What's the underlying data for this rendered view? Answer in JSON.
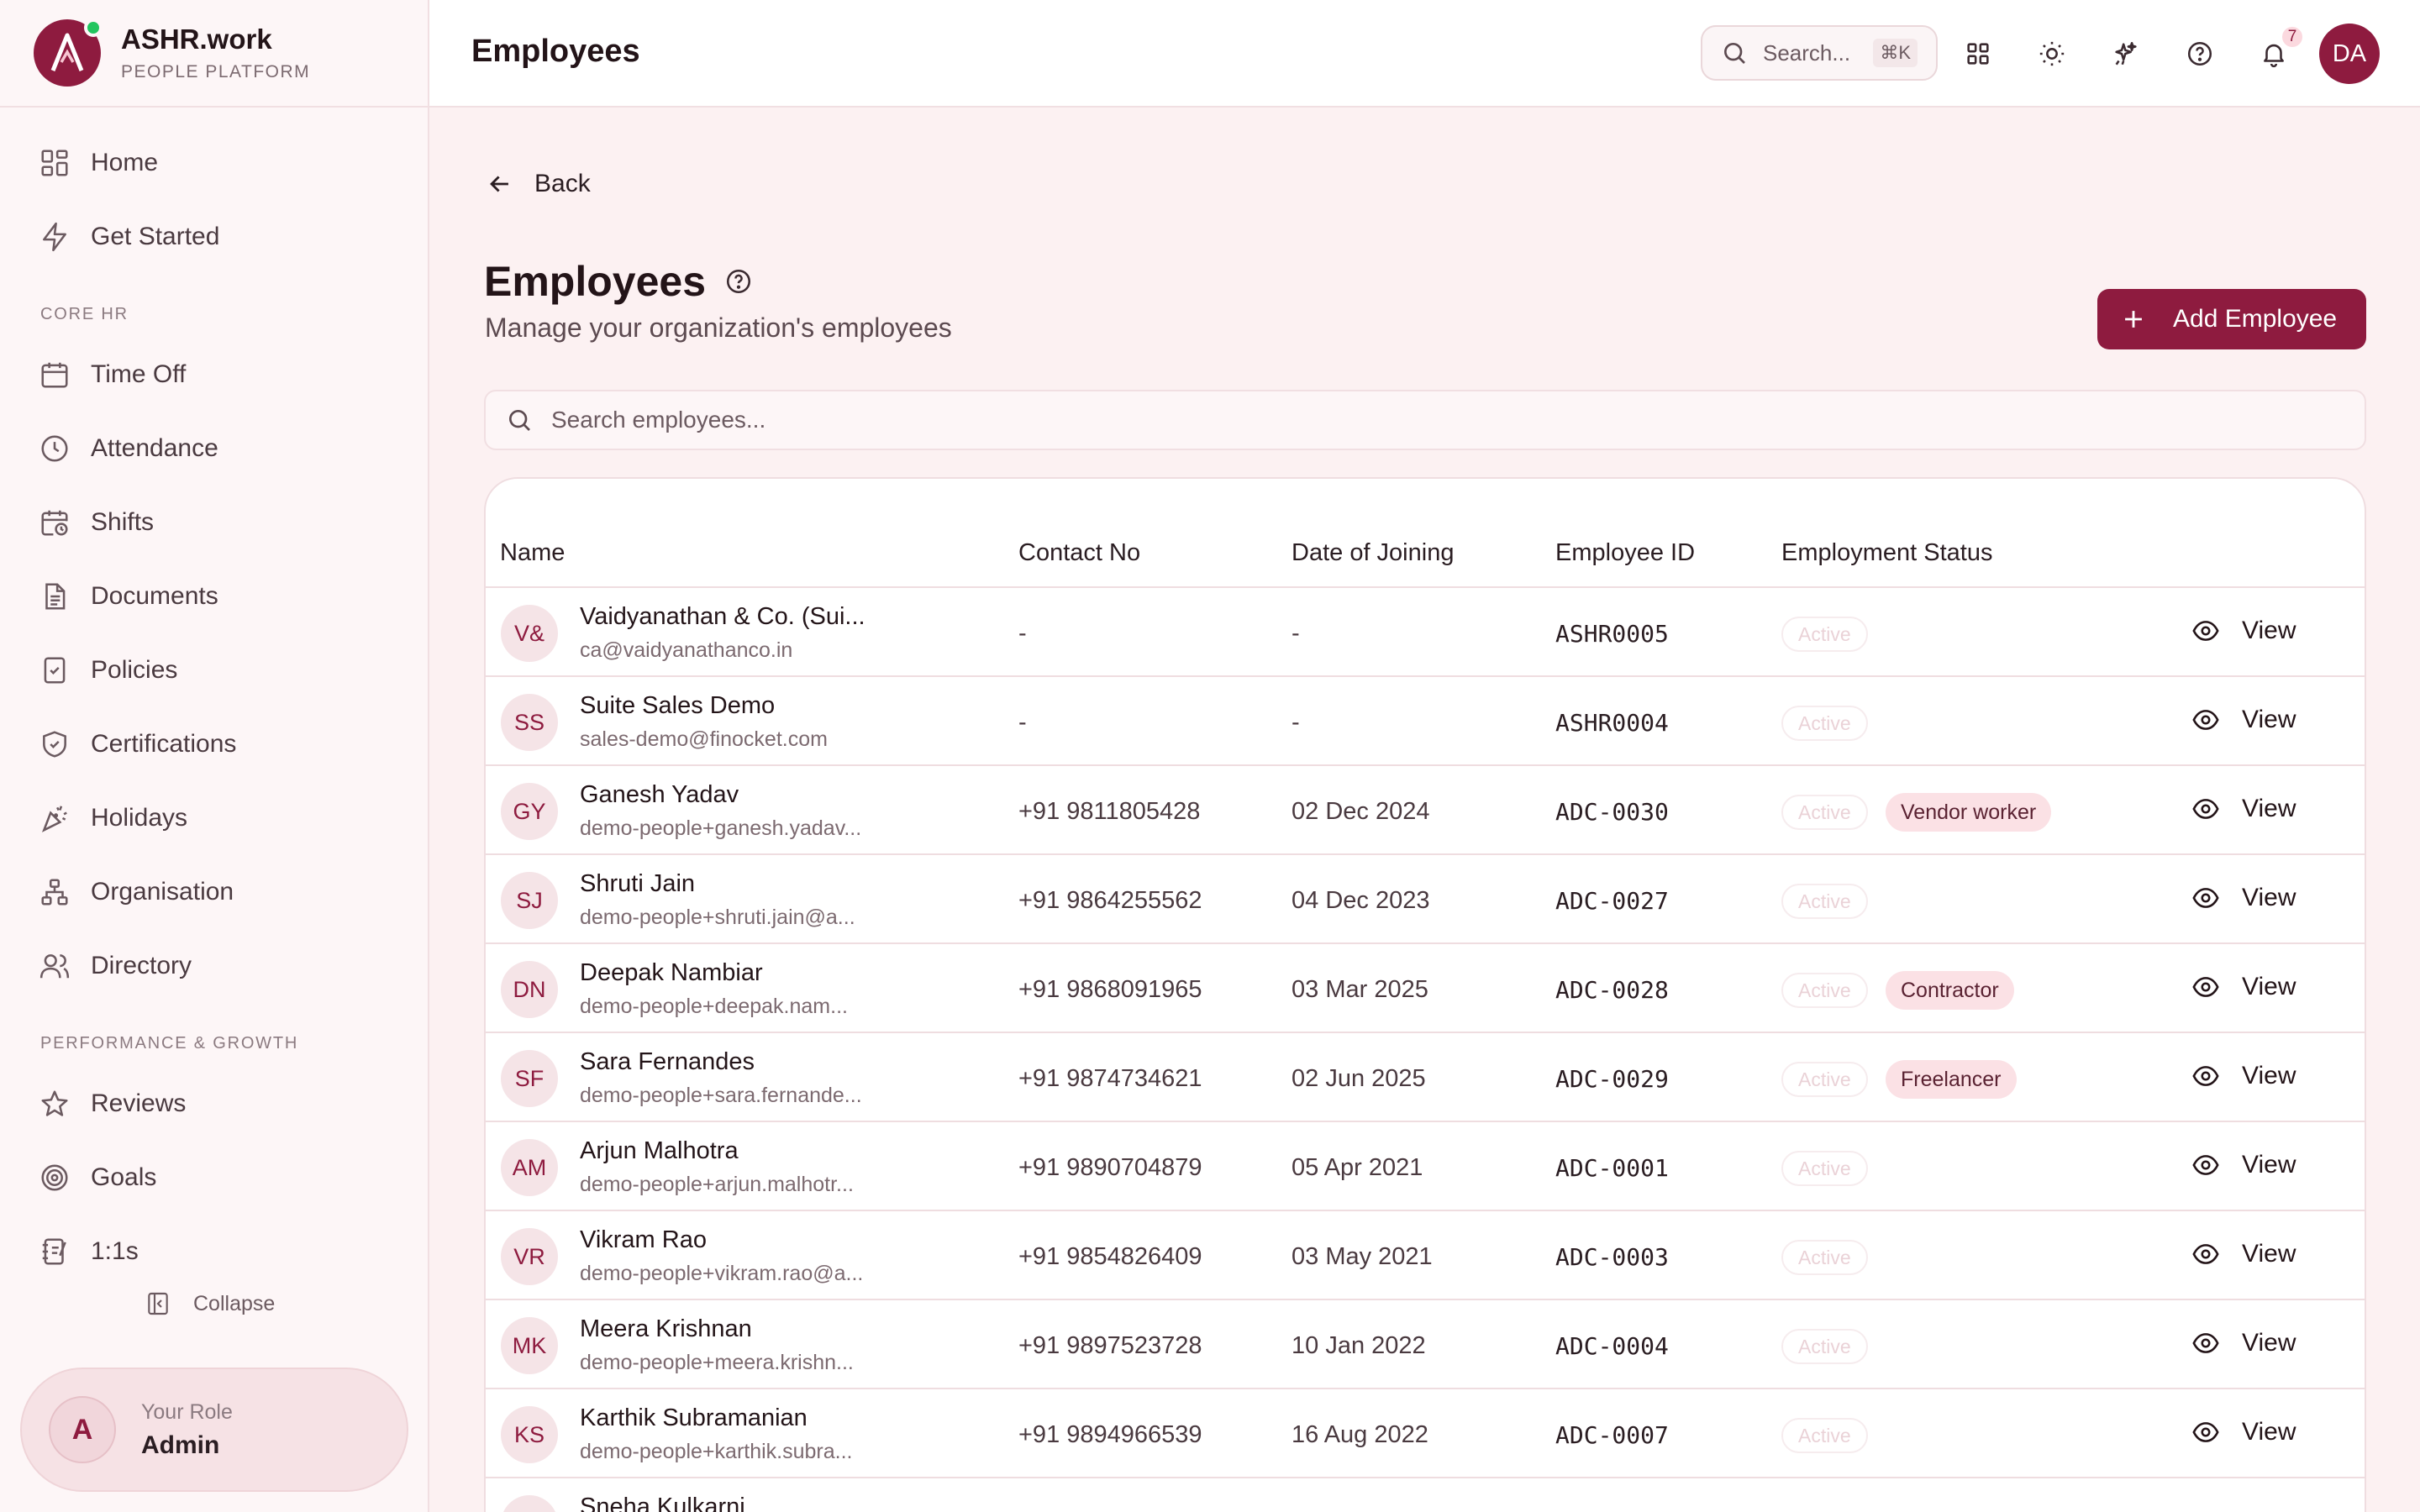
{
  "brand": {
    "name": "ASHR.work",
    "subtitle": "PEOPLE PLATFORM",
    "logo_letter": "A",
    "accent": "#8e1b3f"
  },
  "sidebar": {
    "items_top": [
      {
        "label": "Home",
        "icon": "grid-icon"
      },
      {
        "label": "Get Started",
        "icon": "lightning-icon"
      }
    ],
    "section_core": "CORE HR",
    "items_core": [
      {
        "label": "Time Off",
        "icon": "calendar-icon"
      },
      {
        "label": "Attendance",
        "icon": "clock-icon"
      },
      {
        "label": "Shifts",
        "icon": "calendar-clock-icon"
      },
      {
        "label": "Documents",
        "icon": "document-icon"
      },
      {
        "label": "Policies",
        "icon": "clipboard-check-icon"
      },
      {
        "label": "Certifications",
        "icon": "shield-check-icon"
      },
      {
        "label": "Holidays",
        "icon": "party-icon"
      },
      {
        "label": "Organisation",
        "icon": "org-chart-icon"
      },
      {
        "label": "Directory",
        "icon": "users-icon"
      }
    ],
    "section_perf": "PERFORMANCE & GROWTH",
    "items_perf": [
      {
        "label": "Reviews",
        "icon": "star-icon"
      },
      {
        "label": "Goals",
        "icon": "target-icon"
      },
      {
        "label": "1:1s",
        "icon": "notebook-icon"
      }
    ],
    "collapse_label": "Collapse",
    "role": {
      "initial": "A",
      "label": "Your Role",
      "value": "Admin"
    }
  },
  "topbar": {
    "title": "Employees",
    "search_placeholder": "Search...",
    "search_shortcut": "⌘K",
    "notification_count": "7",
    "user_initials": "DA"
  },
  "page": {
    "back_label": "Back",
    "title": "Employees",
    "subtitle": "Manage your organization's employees",
    "add_button": "Add Employee",
    "search_placeholder": "Search employees..."
  },
  "table": {
    "columns": [
      "Name",
      "Contact No",
      "Date of Joining",
      "Employee ID",
      "Employment Status"
    ],
    "view_label": "View",
    "status_label": "Active",
    "rows": [
      {
        "initials": "V&",
        "name": "Vaidyanathan & Co. (Sui...",
        "email": "ca@vaidyanathanco.in",
        "contact": "-",
        "doj": "-",
        "id": "ASHR0005",
        "tag": ""
      },
      {
        "initials": "SS",
        "name": "Suite Sales Demo",
        "email": "sales-demo@finocket.com",
        "contact": "-",
        "doj": "-",
        "id": "ASHR0004",
        "tag": ""
      },
      {
        "initials": "GY",
        "name": "Ganesh Yadav",
        "email": "demo-people+ganesh.yadav...",
        "contact": "+91 9811805428",
        "doj": "02 Dec 2024",
        "id": "ADC-0030",
        "tag": "Vendor worker"
      },
      {
        "initials": "SJ",
        "name": "Shruti Jain",
        "email": "demo-people+shruti.jain@a...",
        "contact": "+91 9864255562",
        "doj": "04 Dec 2023",
        "id": "ADC-0027",
        "tag": ""
      },
      {
        "initials": "DN",
        "name": "Deepak Nambiar",
        "email": "demo-people+deepak.nam...",
        "contact": "+91 9868091965",
        "doj": "03 Mar 2025",
        "id": "ADC-0028",
        "tag": "Contractor"
      },
      {
        "initials": "SF",
        "name": "Sara Fernandes",
        "email": "demo-people+sara.fernande...",
        "contact": "+91 9874734621",
        "doj": "02 Jun 2025",
        "id": "ADC-0029",
        "tag": "Freelancer"
      },
      {
        "initials": "AM",
        "name": "Arjun Malhotra",
        "email": "demo-people+arjun.malhotr...",
        "contact": "+91 9890704879",
        "doj": "05 Apr 2021",
        "id": "ADC-0001",
        "tag": ""
      },
      {
        "initials": "VR",
        "name": "Vikram Rao",
        "email": "demo-people+vikram.rao@a...",
        "contact": "+91 9854826409",
        "doj": "03 May 2021",
        "id": "ADC-0003",
        "tag": ""
      },
      {
        "initials": "MK",
        "name": "Meera Krishnan",
        "email": "demo-people+meera.krishn...",
        "contact": "+91 9897523728",
        "doj": "10 Jan 2022",
        "id": "ADC-0004",
        "tag": ""
      },
      {
        "initials": "KS",
        "name": "Karthik Subramanian",
        "email": "demo-people+karthik.subra...",
        "contact": "+91 9894966539",
        "doj": "16 Aug 2022",
        "id": "ADC-0007",
        "tag": ""
      },
      {
        "initials": "SK",
        "name": "Sneha Kulkarni",
        "email": "",
        "contact": "",
        "doj": "",
        "id": "",
        "tag": ""
      }
    ]
  }
}
